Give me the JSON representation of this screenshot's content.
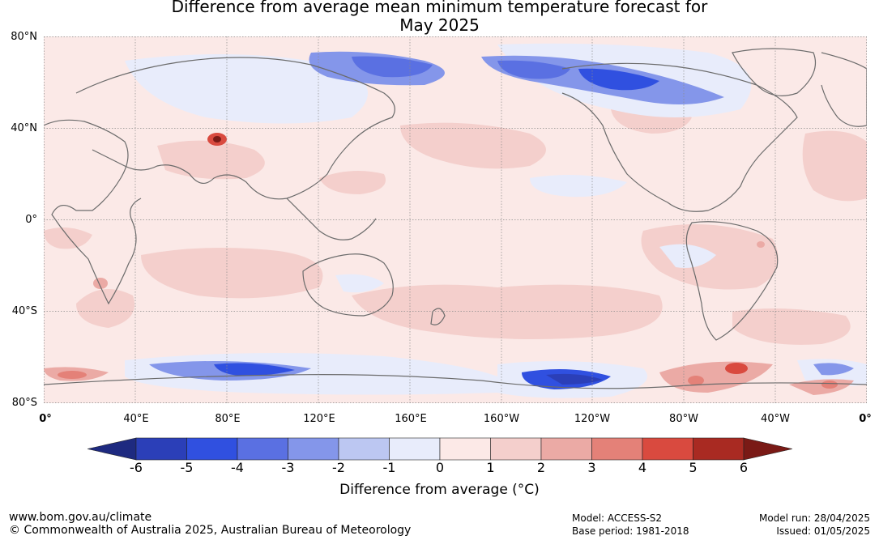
{
  "title": {
    "line1": "Difference from average mean minimum temperature forecast for",
    "line2": "May 2025"
  },
  "map": {
    "lat_labels": [
      "80°N",
      "40°N",
      "0°",
      "40°S",
      "80°S"
    ],
    "lon_labels": [
      "0°",
      "40°E",
      "80°E",
      "120°E",
      "160°E",
      "160°W",
      "120°W",
      "80°W",
      "40°W",
      "0°"
    ],
    "colors": {
      "background_warm": "#fbe9e7",
      "coast": "#6b6b6b",
      "grid": "#8a8a8a"
    }
  },
  "colorbar": {
    "ticks": [
      "-6",
      "-5",
      "-4",
      "-3",
      "-2",
      "-1",
      "0",
      "1",
      "2",
      "3",
      "4",
      "5",
      "6"
    ],
    "colors": [
      "#1e2a80",
      "#2b3fb8",
      "#3050e0",
      "#5a70e2",
      "#8496ea",
      "#bcc7f2",
      "#e8ecfb",
      "#fce9e7",
      "#f4cfcc",
      "#ebaaa5",
      "#e48178",
      "#d94a3f",
      "#a92a22",
      "#7a1a16"
    ],
    "label": "Difference from average (°C)"
  },
  "footer": {
    "website": "www.bom.gov.au/climate",
    "copyright": "© Commonwealth of Australia 2025, Australian Bureau of Meteorology",
    "model": "Model: ACCESS-S2",
    "base_period": "Base period: 1981-2018",
    "model_run": "Model run: 28/04/2025",
    "issued": "Issued: 01/05/2025"
  }
}
